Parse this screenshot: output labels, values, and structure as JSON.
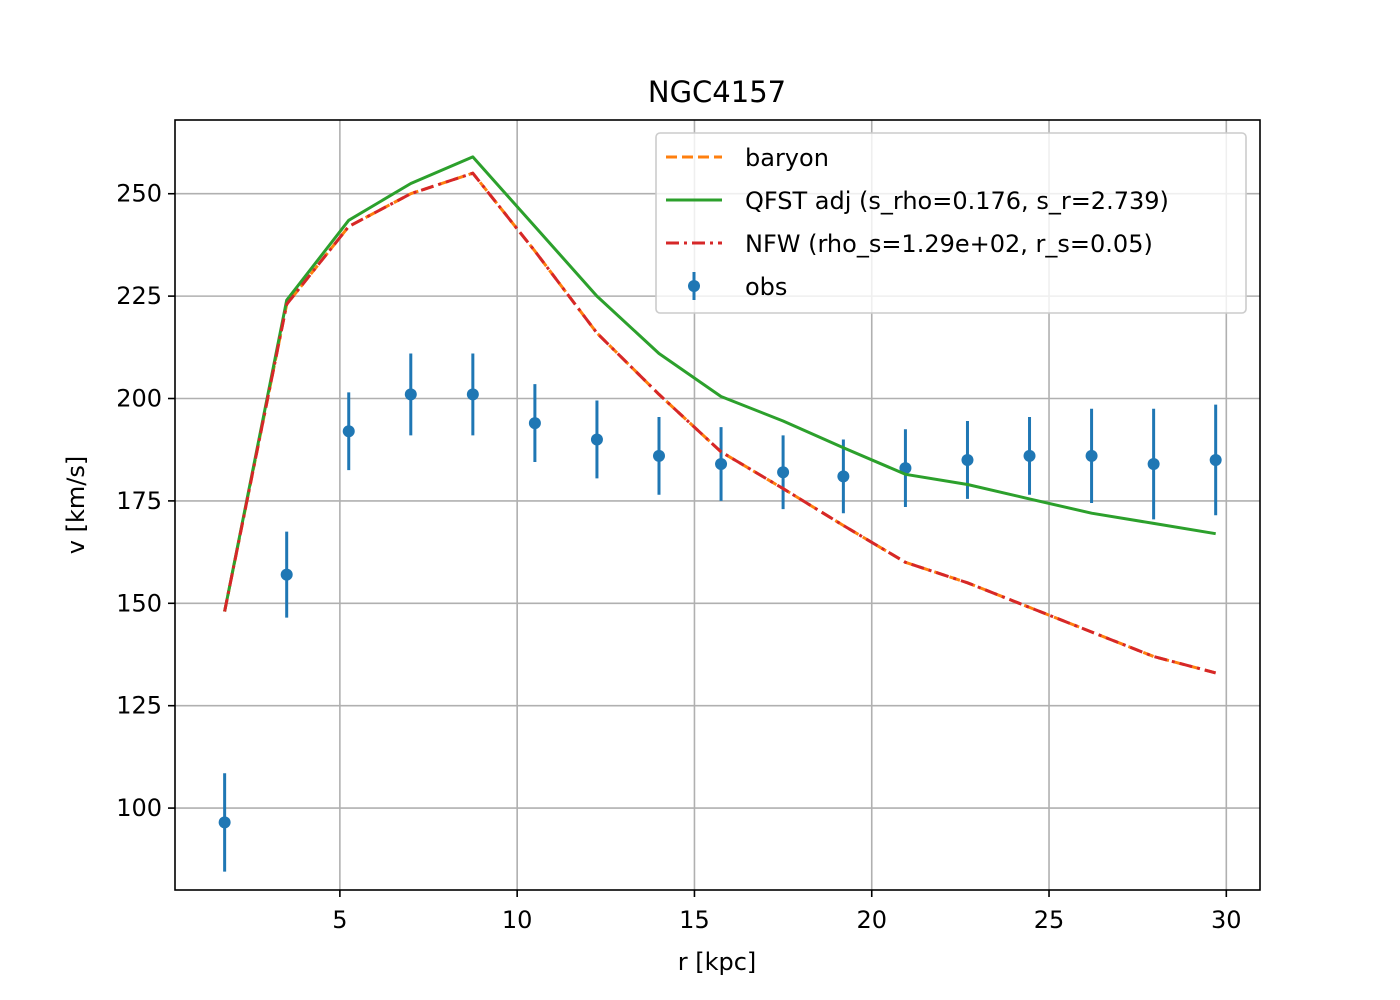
{
  "chart_data": {
    "type": "line",
    "title": "NGC4157",
    "xlabel": "r [kpc]",
    "ylabel": "v [km/s]",
    "xlim": [
      0.35,
      30.95
    ],
    "ylim": [
      80,
      268
    ],
    "xticks": [
      5,
      10,
      15,
      20,
      25,
      30
    ],
    "yticks": [
      100,
      125,
      150,
      175,
      200,
      225,
      250
    ],
    "grid": true,
    "legend_position": "top-right",
    "x": [
      1.75,
      3.5,
      5.25,
      7.0,
      8.75,
      10.5,
      12.25,
      14.0,
      15.75,
      17.5,
      19.2,
      20.95,
      22.7,
      24.45,
      26.2,
      27.95,
      29.7
    ],
    "series": [
      {
        "name": "baryon",
        "kind": "line",
        "style": "dashed",
        "color": "#ff7f0e",
        "values": [
          148,
          223,
          242,
          250,
          255,
          236,
          216,
          201,
          187,
          178,
          169,
          160,
          155,
          149,
          143,
          137,
          133
        ]
      },
      {
        "name": "QFST adj (s_rho=0.176, s_r=2.739)",
        "kind": "line",
        "style": "solid",
        "color": "#2ca02c",
        "values": [
          148,
          224,
          243.5,
          252.5,
          259,
          242,
          225,
          211,
          200.5,
          194.5,
          188,
          181.5,
          179,
          175.5,
          172,
          169.5,
          167
        ]
      },
      {
        "name": "NFW (rho_s=1.29e+02, r_s=0.05)",
        "kind": "line",
        "style": "dashdot",
        "color": "#d62728",
        "values": [
          148,
          223,
          242,
          250,
          255,
          236,
          216,
          201,
          187,
          178,
          169,
          160,
          155,
          149,
          143,
          137,
          133
        ]
      },
      {
        "name": "obs",
        "kind": "errorbar",
        "color": "#1f77b4",
        "values": [
          96.5,
          157,
          192,
          201,
          201,
          194,
          190,
          186,
          184,
          182,
          181,
          183,
          185,
          186,
          186,
          184,
          185
        ],
        "errors": [
          12,
          10.5,
          9.5,
          10,
          10,
          9.5,
          9.5,
          9.5,
          9,
          9,
          9,
          9.5,
          9.5,
          9.5,
          11.5,
          13.5,
          13.5
        ]
      }
    ]
  }
}
